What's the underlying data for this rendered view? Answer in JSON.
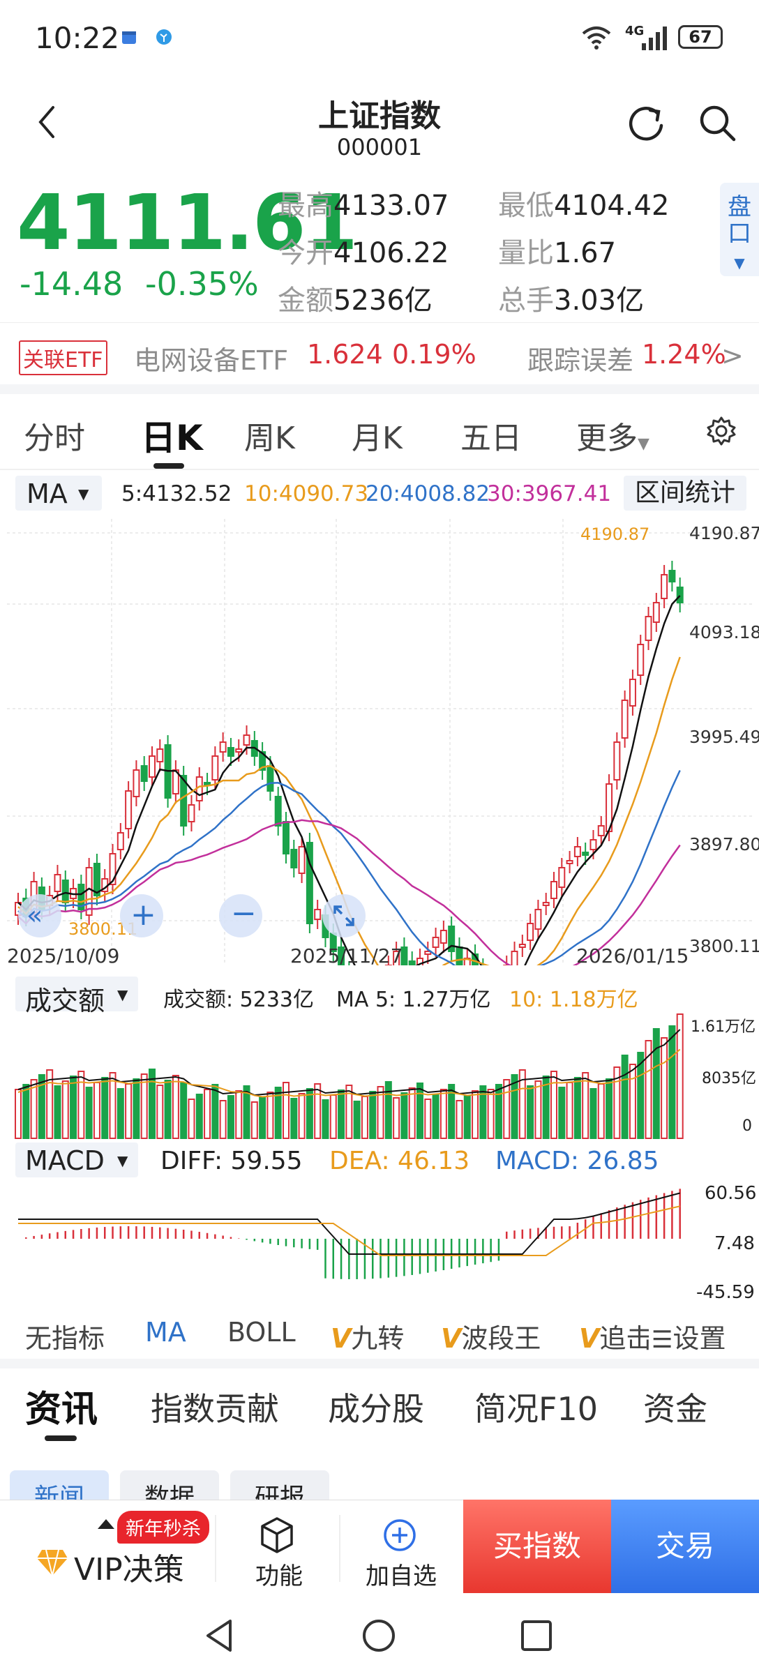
{
  "status_bar": {
    "time": "10:22",
    "network": "4G",
    "battery": "67"
  },
  "header": {
    "title": "上证指数",
    "code": "000001"
  },
  "quote": {
    "price": "4111.61",
    "change": "-14.48",
    "change_pct": "-0.35%",
    "stats": [
      {
        "label": "最高",
        "value": "4133.07"
      },
      {
        "label": "最低",
        "value": "4104.42"
      },
      {
        "label": "今开",
        "value": "4106.22"
      },
      {
        "label": "量比",
        "value": "1.67"
      },
      {
        "label": "金额",
        "value": "5236亿"
      },
      {
        "label": "总手",
        "value": "3.03亿"
      }
    ],
    "pankou_label": "盘口"
  },
  "etf": {
    "tag": "关联ETF",
    "name": "电网设备ETF",
    "price": "1.624",
    "pct": "0.19%",
    "track_label": "跟踪误差",
    "track_value": "1.24%"
  },
  "period_tabs": [
    "分时",
    "日K",
    "周K",
    "月K",
    "五日",
    "更多"
  ],
  "active_period": "日K",
  "ma_bar": {
    "selector": "MA",
    "ma5": "5:4132.52",
    "ma10": "10:4090.73",
    "ma20": "20:4008.82",
    "ma30": "30:3967.41",
    "range_button": "区间统计"
  },
  "main_chart": {
    "y_labels": [
      "4190.87",
      "4093.18",
      "3995.49",
      "3897.80",
      "3800.11"
    ],
    "x_labels": [
      "2025/10/09",
      "2025/11/27",
      "2026/01/15"
    ],
    "high_marker": "4190.87",
    "low_marker": "3800.11"
  },
  "volume": {
    "selector": "成交额",
    "label": "成交额: 5233亿",
    "ma5": "MA 5: 1.27万亿",
    "ma10": "10: 1.18万亿",
    "y_labels": [
      "1.61万亿",
      "8035亿",
      "0"
    ]
  },
  "macd": {
    "selector": "MACD",
    "diff": "DIFF: 59.55",
    "dea": "DEA: 46.13",
    "macd": "MACD: 26.85",
    "y_labels": [
      "60.56",
      "7.48",
      "-45.59"
    ]
  },
  "indicator_tabs": [
    "无指标",
    "MA",
    "BOLL",
    "九转",
    "波段王",
    "追击"
  ],
  "indicator_settings": "设置",
  "info_tabs": [
    "资讯",
    "指数贡献",
    "成分股",
    "简况F10",
    "资金"
  ],
  "sub_tabs": [
    "新闻",
    "数据",
    "研报"
  ],
  "bottom_bar": {
    "badge": "新年秒杀",
    "vip": "VIP决策",
    "function": "功能",
    "add": "加自选",
    "buy": "买指数",
    "trade": "交易"
  },
  "colors": {
    "up": "#d9303a",
    "down": "#1aa34a",
    "ma5": "#111111",
    "ma10": "#e89b1c",
    "ma20": "#2f72c8",
    "ma30": "#c22f9b"
  },
  "chart_data": {
    "type": "candlestick",
    "y_range": [
      3800.11,
      4190.87
    ],
    "ma_values": {
      "ma5": 4132.52,
      "ma10": 4090.73,
      "ma20": 4008.82,
      "ma30": 3967.41
    }
  }
}
